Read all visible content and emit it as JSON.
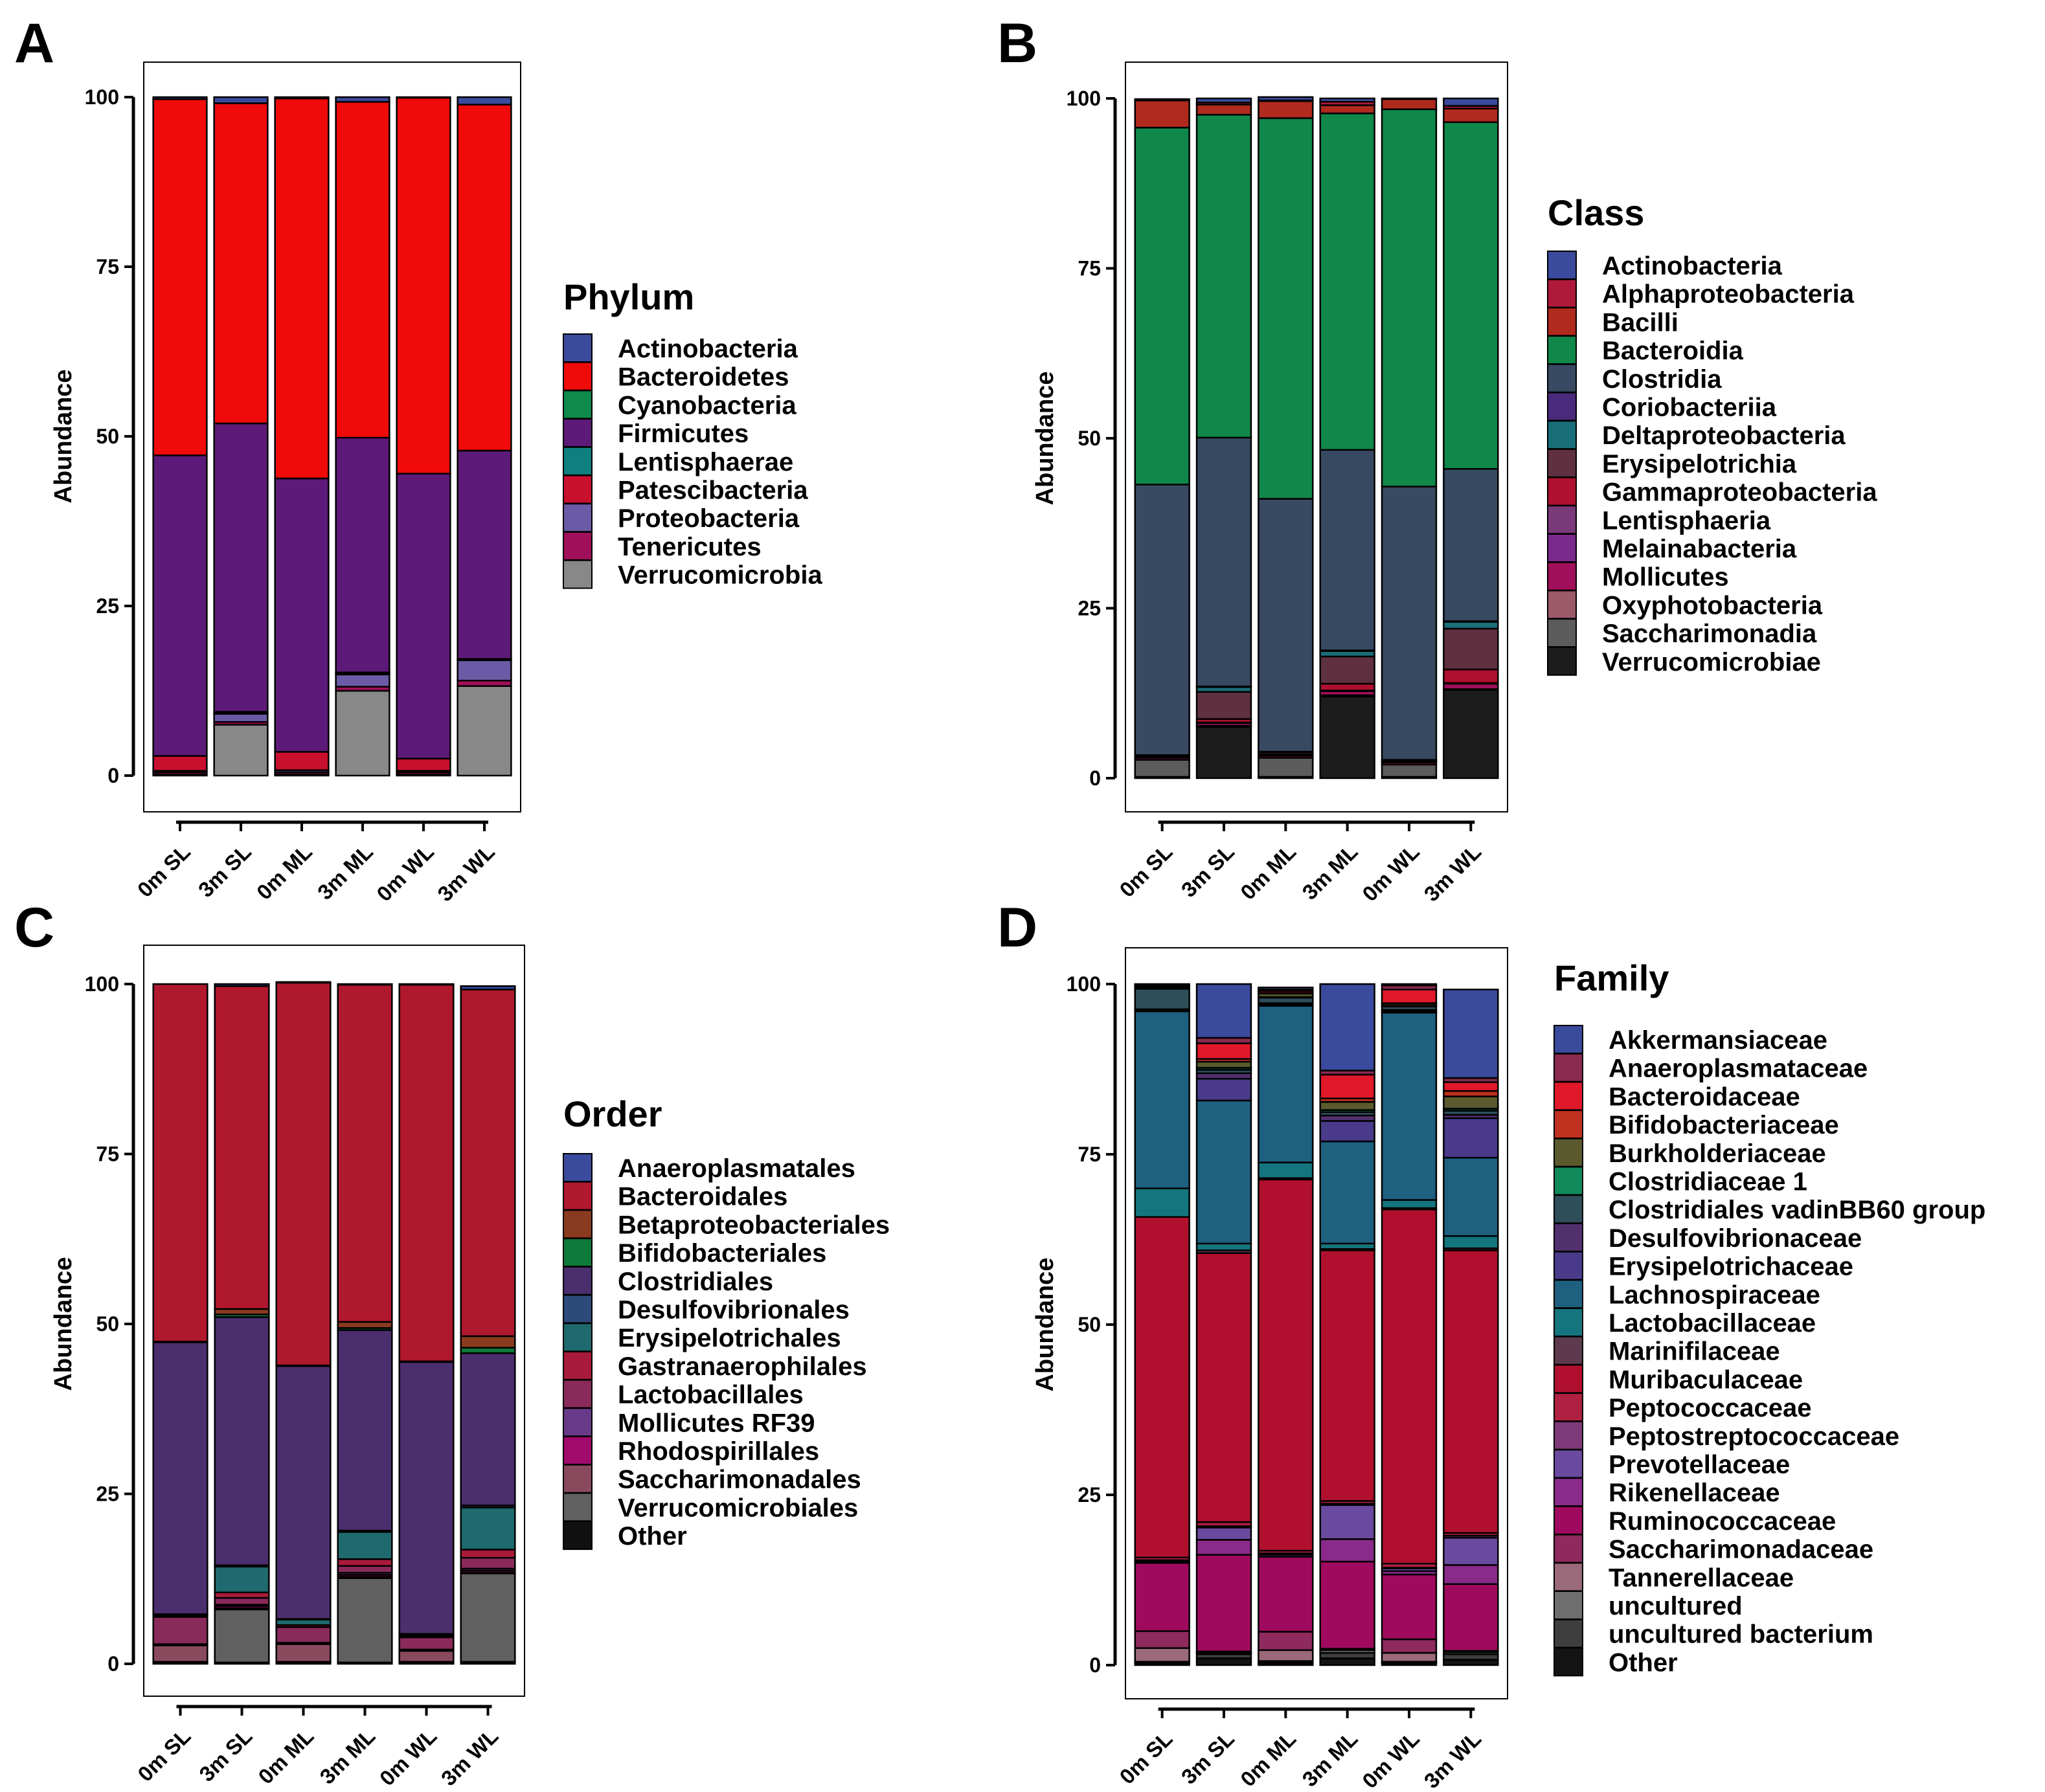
{
  "panels": [
    {
      "letter": "A",
      "legend_title": "Phylum",
      "legend": [
        "Actinobacteria",
        "Bacteroidetes",
        "Cyanobacteria",
        "Firmicutes",
        "Lentisphaerae",
        "Patescibacteria",
        "Proteobacteria",
        "Tenericutes",
        "Verrucomicrobia"
      ]
    },
    {
      "letter": "B",
      "legend_title": "Class",
      "legend": [
        "Actinobacteria",
        "Alphaproteobacteria",
        "Bacilli",
        "Bacteroidia",
        "Clostridia",
        "Coriobacteriia",
        "Deltaproteobacteria",
        "Erysipelotrichia",
        "Gammaproteobacteria",
        "Lentisphaeria",
        "Melainabacteria",
        "Mollicutes",
        "Oxyphotobacteria",
        "Saccharimonadia",
        "Verrucomicrobiae"
      ]
    },
    {
      "letter": "C",
      "legend_title": "Order",
      "legend": [
        "Anaeroplasmatales",
        "Bacteroidales",
        "Betaproteobacteriales",
        "Bifidobacteriales",
        "Clostridiales",
        "Desulfovibrionales",
        "Erysipelotrichales",
        "Gastranaerophilales",
        "Lactobacillales",
        "Mollicutes RF39",
        "Rhodospirillales",
        "Saccharimonadales",
        "Verrucomicrobiales",
        "Other"
      ]
    },
    {
      "letter": "D",
      "legend_title": "Family",
      "legend": [
        "Akkermansiaceae",
        "Anaeroplasmataceae",
        "Bacteroidaceae",
        "Bifidobacteriaceae",
        "Burkholderiaceae",
        "Clostridiaceae 1",
        "Clostridiales vadinBB60 group",
        "Desulfovibrionaceae",
        "Erysipelotrichaceae",
        "Lachnospiraceae",
        "Lactobacillaceae",
        "Marinifilaceae",
        "Muribaculaceae",
        "Peptococcaceae",
        "Peptostreptococcaceae",
        "Prevotellaceae",
        "Rikenellaceae",
        "Ruminococcaceae",
        "Saccharimonadaceae",
        "Tannerellaceae",
        "uncultured",
        "uncultured bacterium",
        "Other"
      ]
    }
  ],
  "chart_data": [
    {
      "type": "bar",
      "stacked": true,
      "panel": "A",
      "categories": [
        "0m SL",
        "3m SL",
        "0m ML",
        "3m ML",
        "0m WL",
        "3m WL"
      ],
      "ylabel": "Abundance",
      "ylim": [
        0,
        100
      ],
      "yticks": [
        0,
        25,
        50,
        75,
        100
      ],
      "legend_title": "Phylum",
      "series": [
        {
          "name": "Verrucomicrobia",
          "color": "#888888",
          "values": [
            0.2,
            7.5,
            0.2,
            12.5,
            0.2,
            13.2
          ]
        },
        {
          "name": "Tenericutes",
          "color": "#A0105A",
          "values": [
            0.3,
            0.4,
            0.3,
            0.6,
            0.3,
            0.8
          ]
        },
        {
          "name": "Proteobacteria",
          "color": "#6B5BA6",
          "values": [
            0.2,
            1.2,
            0.3,
            1.8,
            0.2,
            3.0
          ]
        },
        {
          "name": "Patescibacteria",
          "color": "#C8102E",
          "values": [
            2.2,
            0.2,
            2.7,
            0.2,
            1.8,
            0.1
          ]
        },
        {
          "name": "Lentisphaerae",
          "color": "#0E8080",
          "values": [
            0.0,
            0.1,
            0.0,
            0.1,
            0.0,
            0.1
          ]
        },
        {
          "name": "Firmicutes",
          "color": "#5E1A78",
          "values": [
            44.3,
            42.5,
            40.3,
            34.6,
            42.0,
            30.7
          ]
        },
        {
          "name": "Cyanobacteria",
          "color": "#0F8A4A",
          "values": [
            0.0,
            0.0,
            0.0,
            0.0,
            0.0,
            0.0
          ]
        },
        {
          "name": "Bacteroidetes",
          "color": "#F00A0A",
          "values": [
            52.5,
            47.2,
            56.0,
            49.5,
            55.4,
            51.0
          ]
        },
        {
          "name": "Actinobacteria",
          "color": "#3A4A9C",
          "values": [
            0.3,
            0.9,
            0.2,
            0.7,
            0.1,
            1.1
          ]
        }
      ]
    },
    {
      "type": "bar",
      "stacked": true,
      "panel": "B",
      "categories": [
        "0m SL",
        "3m SL",
        "0m ML",
        "3m ML",
        "0m WL",
        "3m WL"
      ],
      "ylabel": "Abundance",
      "ylim": [
        0,
        100
      ],
      "yticks": [
        0,
        25,
        50,
        75,
        100
      ],
      "legend_title": "Class",
      "series": [
        {
          "name": "Verrucomicrobiae",
          "color": "#1C1C1C",
          "values": [
            0.2,
            7.5,
            0.2,
            12.0,
            0.2,
            13.0
          ]
        },
        {
          "name": "Saccharimonadia",
          "color": "#5C5C5C",
          "values": [
            2.5,
            0.2,
            2.8,
            0.2,
            1.8,
            0.1
          ]
        },
        {
          "name": "Oxyphotobacteria",
          "color": "#9A5A6A",
          "values": [
            0.0,
            0.0,
            0.0,
            0.0,
            0.0,
            0.0
          ]
        },
        {
          "name": "Mollicutes",
          "color": "#A0105A",
          "values": [
            0.3,
            0.4,
            0.3,
            0.6,
            0.3,
            0.8
          ]
        },
        {
          "name": "Melainabacteria",
          "color": "#7A2A8A",
          "values": [
            0.0,
            0.0,
            0.0,
            0.0,
            0.0,
            0.0
          ]
        },
        {
          "name": "Lentisphaeria",
          "color": "#7A3A7A",
          "values": [
            0.0,
            0.1,
            0.0,
            0.1,
            0.0,
            0.1
          ]
        },
        {
          "name": "Gammaproteobacteria",
          "color": "#B01030",
          "values": [
            0.1,
            0.5,
            0.2,
            1.0,
            0.1,
            2.0
          ]
        },
        {
          "name": "Erysipelotrichia",
          "color": "#5E3040",
          "values": [
            0.2,
            4.0,
            0.3,
            4.0,
            0.2,
            6.0
          ]
        },
        {
          "name": "Deltaproteobacteria",
          "color": "#1A6E78",
          "values": [
            0.1,
            0.7,
            0.1,
            0.8,
            0.1,
            1.0
          ]
        },
        {
          "name": "Coriobacteriia",
          "color": "#4A2A7A",
          "values": [
            0.0,
            0.1,
            0.0,
            0.1,
            0.0,
            0.1
          ]
        },
        {
          "name": "Clostridia",
          "color": "#384A62",
          "values": [
            39.8,
            36.6,
            37.2,
            29.5,
            40.2,
            22.4
          ]
        },
        {
          "name": "Bacteroidia",
          "color": "#10884A",
          "values": [
            52.5,
            47.5,
            56.0,
            49.5,
            55.5,
            51.0
          ]
        },
        {
          "name": "Bacilli",
          "color": "#B02A1E",
          "values": [
            4.0,
            1.5,
            2.5,
            1.2,
            1.5,
            2.0
          ]
        },
        {
          "name": "Alphaproteobacteria",
          "color": "#B01A3A",
          "values": [
            0.1,
            0.3,
            0.1,
            0.5,
            0.1,
            0.4
          ]
        },
        {
          "name": "Actinobacteria",
          "color": "#3A4A9C",
          "values": [
            0.1,
            0.6,
            0.5,
            0.5,
            0.0,
            1.1
          ]
        }
      ]
    },
    {
      "type": "bar",
      "stacked": true,
      "panel": "C",
      "categories": [
        "0m SL",
        "3m SL",
        "0m ML",
        "3m ML",
        "0m WL",
        "3m WL"
      ],
      "ylabel": "Abundance",
      "ylim": [
        0,
        100
      ],
      "yticks": [
        0,
        25,
        50,
        75,
        100
      ],
      "legend_title": "Order",
      "series": [
        {
          "name": "Other",
          "color": "#111111",
          "values": [
            0.1,
            0.2,
            0.1,
            0.2,
            0.1,
            0.3
          ]
        },
        {
          "name": "Verrucomicrobiales",
          "color": "#606060",
          "values": [
            0.2,
            7.8,
            0.2,
            12.4,
            0.2,
            13.0
          ]
        },
        {
          "name": "Saccharimonadales",
          "color": "#8A4A5E",
          "values": [
            2.4,
            0.2,
            2.6,
            0.2,
            1.6,
            0.1
          ]
        },
        {
          "name": "Rhodospirillales",
          "color": "#A00A6A",
          "values": [
            0.1,
            0.3,
            0.1,
            0.3,
            0.1,
            0.3
          ]
        },
        {
          "name": "Mollicutes RF39",
          "color": "#6A3A8A",
          "values": [
            0.1,
            0.2,
            0.1,
            0.3,
            0.1,
            0.3
          ]
        },
        {
          "name": "Lactobacillales",
          "color": "#8A2A5A",
          "values": [
            4.0,
            1.0,
            2.3,
            1.0,
            1.8,
            1.6
          ]
        },
        {
          "name": "Gastranaerophilales",
          "color": "#A81A3A",
          "values": [
            0.2,
            0.8,
            0.3,
            1.0,
            0.2,
            1.2
          ]
        },
        {
          "name": "Erysipelotrichales",
          "color": "#1E6A6E",
          "values": [
            0.1,
            3.8,
            0.8,
            4.0,
            0.2,
            6.2
          ]
        },
        {
          "name": "Desulfovibrionales",
          "color": "#2E4A7A",
          "values": [
            0.1,
            0.2,
            0.1,
            0.2,
            0.1,
            0.3
          ]
        },
        {
          "name": "Clostridiales",
          "color": "#4B2E6E",
          "values": [
            40.0,
            36.5,
            37.2,
            29.5,
            40.0,
            22.4
          ]
        },
        {
          "name": "Bifidobacteriales",
          "color": "#0E7A3A",
          "values": [
            0.0,
            0.4,
            0.0,
            0.3,
            0.0,
            0.8
          ]
        },
        {
          "name": "Betaproteobacteriales",
          "color": "#8A3A1E",
          "values": [
            0.1,
            0.8,
            0.1,
            0.9,
            0.1,
            1.7
          ]
        },
        {
          "name": "Bacteroidales",
          "color": "#B0182E",
          "values": [
            52.6,
            47.5,
            56.3,
            49.6,
            55.4,
            51.0
          ]
        },
        {
          "name": "Anaeroplasmatales",
          "color": "#3A4A9C",
          "values": [
            0.0,
            0.3,
            0.1,
            0.1,
            0.1,
            0.5
          ]
        }
      ]
    },
    {
      "type": "bar",
      "stacked": true,
      "panel": "D",
      "categories": [
        "0m SL",
        "3m SL",
        "0m ML",
        "3m ML",
        "0m WL",
        "3m WL"
      ],
      "ylabel": "Abundance",
      "ylim": [
        0,
        100
      ],
      "yticks": [
        0,
        25,
        50,
        75,
        100
      ],
      "legend_title": "Family",
      "series": [
        {
          "name": "Other",
          "color": "#141414",
          "values": [
            0.3,
            1.0,
            0.3,
            1.0,
            0.3,
            0.8
          ]
        },
        {
          "name": "uncultured bacterium",
          "color": "#3E3E3E",
          "values": [
            0.1,
            0.6,
            0.1,
            0.8,
            0.1,
            0.8
          ]
        },
        {
          "name": "uncultured",
          "color": "#6E6E6E",
          "values": [
            0.1,
            0.2,
            0.2,
            0.4,
            0.1,
            0.3
          ]
        },
        {
          "name": "Tannerellaceae",
          "color": "#9A6A7A",
          "values": [
            2.0,
            0.1,
            1.6,
            0.1,
            1.3,
            0.1
          ]
        },
        {
          "name": "Saccharimonadaceae",
          "color": "#8E2A5E",
          "values": [
            2.5,
            0.1,
            2.7,
            0.1,
            2.0,
            0.1
          ]
        },
        {
          "name": "Ruminococcaceae",
          "color": "#A00A5E",
          "values": [
            10.0,
            14.2,
            11.0,
            12.8,
            9.5,
            9.8
          ]
        },
        {
          "name": "Rikenellaceae",
          "color": "#8A2A8A",
          "values": [
            0.2,
            2.2,
            0.3,
            3.3,
            0.5,
            2.8
          ]
        },
        {
          "name": "Prevotellaceae",
          "color": "#6A4A9E",
          "values": [
            0.1,
            1.8,
            0.1,
            5.0,
            0.4,
            4.0
          ]
        },
        {
          "name": "Peptostreptococcaceae",
          "color": "#7E3A7A",
          "values": [
            0.1,
            0.2,
            0.1,
            0.2,
            0.1,
            0.3
          ]
        },
        {
          "name": "Peptococcaceae",
          "color": "#B02040",
          "values": [
            0.4,
            0.6,
            0.4,
            0.4,
            0.6,
            0.4
          ]
        },
        {
          "name": "Muribaculaceae",
          "color": "#B0102E",
          "values": [
            50.0,
            39.5,
            54.5,
            36.8,
            52.0,
            41.5
          ]
        },
        {
          "name": "Marinifilaceae",
          "color": "#5E3A4E",
          "values": [
            0.0,
            0.4,
            0.2,
            0.2,
            0.2,
            0.3
          ]
        },
        {
          "name": "Lactobacillaceae",
          "color": "#15757E",
          "values": [
            4.2,
            1.0,
            2.3,
            0.8,
            1.2,
            1.8
          ]
        },
        {
          "name": "Lachnospiraceae",
          "color": "#1E6080",
          "values": [
            26.0,
            21.0,
            23.0,
            15.0,
            27.5,
            11.5
          ]
        },
        {
          "name": "Erysipelotrichaceae",
          "color": "#4A3A8A",
          "values": [
            0.2,
            3.2,
            0.2,
            3.0,
            0.2,
            5.8
          ]
        },
        {
          "name": "Desulfovibrionaceae",
          "color": "#52306E",
          "values": [
            0.1,
            0.8,
            0.2,
            0.8,
            0.2,
            0.5
          ]
        },
        {
          "name": "Clostridiales vadinBB60 group",
          "color": "#2E4E5A",
          "values": [
            3.0,
            0.5,
            0.8,
            0.5,
            0.5,
            0.6
          ]
        },
        {
          "name": "Clostridiaceae 1",
          "color": "#108A5A",
          "values": [
            0.1,
            0.3,
            0.1,
            0.3,
            0.1,
            0.3
          ]
        },
        {
          "name": "Burkholderiaceae",
          "color": "#5A5A2E",
          "values": [
            0.2,
            0.9,
            0.5,
            1.2,
            0.3,
            1.8
          ]
        },
        {
          "name": "Bifidobacteriaceae",
          "color": "#C0301E",
          "values": [
            0.1,
            0.4,
            0.1,
            0.5,
            0.1,
            0.8
          ]
        },
        {
          "name": "Bacteroidaceae",
          "color": "#E0182A",
          "values": [
            0.2,
            2.3,
            0.3,
            3.5,
            2.0,
            1.3
          ]
        },
        {
          "name": "Anaeroplasmataceae",
          "color": "#8A2A4E",
          "values": [
            0.0,
            0.8,
            0.2,
            0.6,
            0.6,
            0.6
          ]
        },
        {
          "name": "Akkermansiaceae",
          "color": "#3A4A9C",
          "values": [
            0.1,
            7.9,
            0.3,
            12.7,
            0.2,
            13.0
          ]
        }
      ]
    }
  ]
}
